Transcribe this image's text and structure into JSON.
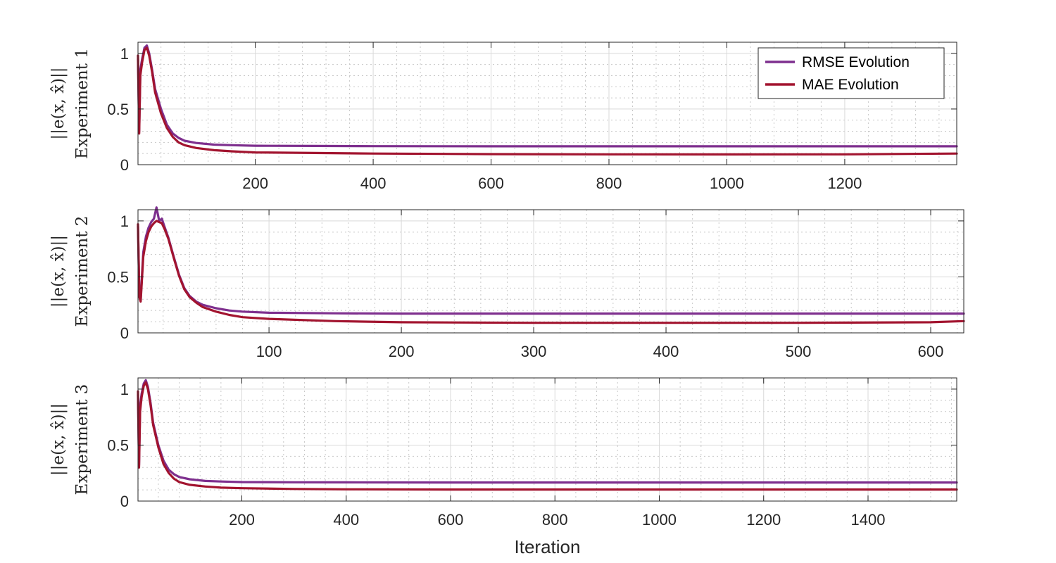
{
  "chart_data": [
    {
      "type": "line",
      "ylabel_line1": "||e(x, x̂)||",
      "ylabel_line2": "Experiment 1",
      "xlabel": "",
      "xlim": [
        1,
        1390
      ],
      "ylim": [
        0,
        1.1
      ],
      "xticks": [
        200,
        400,
        600,
        800,
        1000,
        1200
      ],
      "yticks": [
        0,
        0.5,
        1
      ],
      "grid": true,
      "minor_grid": true,
      "legend": {
        "location": "top-right",
        "entries": [
          "RMSE Evolution",
          "MAE Evolution"
        ]
      },
      "series": [
        {
          "name": "RMSE Evolution",
          "color": "#7E2F8E",
          "x": [
            1,
            3,
            5,
            8,
            12,
            16,
            20,
            25,
            30,
            40,
            50,
            60,
            70,
            80,
            100,
            130,
            160,
            200,
            300,
            400,
            600,
            800,
            1000,
            1200,
            1390
          ],
          "y": [
            0.95,
            0.3,
            0.85,
            0.95,
            1.05,
            1.07,
            1.0,
            0.85,
            0.68,
            0.5,
            0.36,
            0.28,
            0.24,
            0.215,
            0.195,
            0.18,
            0.175,
            0.17,
            0.168,
            0.166,
            0.165,
            0.165,
            0.165,
            0.165,
            0.165
          ]
        },
        {
          "name": "MAE Evolution",
          "color": "#A2142F",
          "x": [
            1,
            3,
            5,
            8,
            12,
            16,
            20,
            25,
            30,
            40,
            50,
            60,
            70,
            80,
            100,
            130,
            160,
            200,
            300,
            400,
            600,
            800,
            1000,
            1200,
            1390
          ],
          "y": [
            0.98,
            0.28,
            0.8,
            0.92,
            1.03,
            1.05,
            0.98,
            0.83,
            0.65,
            0.46,
            0.33,
            0.25,
            0.2,
            0.175,
            0.15,
            0.13,
            0.12,
            0.11,
            0.105,
            0.1,
            0.095,
            0.093,
            0.092,
            0.093,
            0.1
          ]
        }
      ]
    },
    {
      "type": "line",
      "ylabel_line1": "||e(x, x̂)||",
      "ylabel_line2": "Experiment 2",
      "xlabel": "",
      "xlim": [
        1,
        625
      ],
      "ylim": [
        0,
        1.1
      ],
      "xticks": [
        100,
        200,
        300,
        400,
        500,
        600
      ],
      "yticks": [
        0,
        0.5,
        1
      ],
      "grid": true,
      "minor_grid": true,
      "series": [
        {
          "name": "RMSE Evolution",
          "color": "#7E2F8E",
          "x": [
            1,
            2,
            3,
            5,
            7,
            9,
            11,
            13,
            15,
            17,
            19,
            21,
            24,
            28,
            32,
            36,
            40,
            45,
            50,
            60,
            70,
            80,
            100,
            150,
            200,
            300,
            400,
            500,
            625
          ],
          "y": [
            0.95,
            0.35,
            0.3,
            0.72,
            0.86,
            0.94,
            0.99,
            1.02,
            1.12,
            1.0,
            1.02,
            0.95,
            0.85,
            0.68,
            0.52,
            0.4,
            0.33,
            0.28,
            0.25,
            0.22,
            0.2,
            0.19,
            0.18,
            0.175,
            0.172,
            0.172,
            0.172,
            0.172,
            0.172
          ]
        },
        {
          "name": "MAE Evolution",
          "color": "#A2142F",
          "x": [
            1,
            2,
            3,
            5,
            7,
            9,
            11,
            13,
            15,
            17,
            19,
            21,
            24,
            28,
            32,
            36,
            40,
            45,
            50,
            60,
            70,
            80,
            100,
            150,
            200,
            300,
            400,
            500,
            600,
            625
          ],
          "y": [
            0.97,
            0.32,
            0.28,
            0.68,
            0.82,
            0.9,
            0.95,
            0.98,
            1.0,
            0.99,
            0.98,
            0.93,
            0.84,
            0.67,
            0.51,
            0.39,
            0.32,
            0.27,
            0.23,
            0.19,
            0.16,
            0.14,
            0.125,
            0.105,
            0.095,
            0.09,
            0.09,
            0.09,
            0.095,
            0.105
          ]
        }
      ]
    },
    {
      "type": "line",
      "ylabel_line1": "||e(x, x̂)||",
      "ylabel_line2": "Experiment 3",
      "xlabel": "Iteration",
      "xlim": [
        1,
        1570
      ],
      "ylim": [
        0,
        1.1
      ],
      "xticks": [
        200,
        400,
        600,
        800,
        1000,
        1200,
        1400
      ],
      "yticks": [
        0,
        0.5,
        1
      ],
      "grid": true,
      "minor_grid": true,
      "series": [
        {
          "name": "RMSE Evolution",
          "color": "#7E2F8E",
          "x": [
            1,
            3,
            5,
            8,
            12,
            16,
            20,
            25,
            30,
            40,
            50,
            60,
            70,
            80,
            100,
            130,
            160,
            200,
            300,
            400,
            600,
            800,
            1000,
            1200,
            1400,
            1570
          ],
          "y": [
            0.95,
            0.32,
            0.85,
            0.96,
            1.05,
            1.08,
            1.02,
            0.88,
            0.7,
            0.5,
            0.36,
            0.28,
            0.24,
            0.215,
            0.195,
            0.18,
            0.175,
            0.17,
            0.168,
            0.167,
            0.166,
            0.166,
            0.166,
            0.166,
            0.166,
            0.166
          ]
        },
        {
          "name": "MAE Evolution",
          "color": "#A2142F",
          "x": [
            1,
            3,
            5,
            8,
            12,
            16,
            20,
            25,
            30,
            40,
            50,
            60,
            70,
            80,
            100,
            130,
            160,
            200,
            300,
            400,
            600,
            800,
            1000,
            1200,
            1400,
            1570
          ],
          "y": [
            0.98,
            0.3,
            0.8,
            0.93,
            1.03,
            1.06,
            1.0,
            0.86,
            0.68,
            0.48,
            0.33,
            0.25,
            0.2,
            0.17,
            0.145,
            0.13,
            0.12,
            0.115,
            0.108,
            0.105,
            0.103,
            0.103,
            0.103,
            0.103,
            0.103,
            0.103
          ]
        }
      ]
    }
  ]
}
